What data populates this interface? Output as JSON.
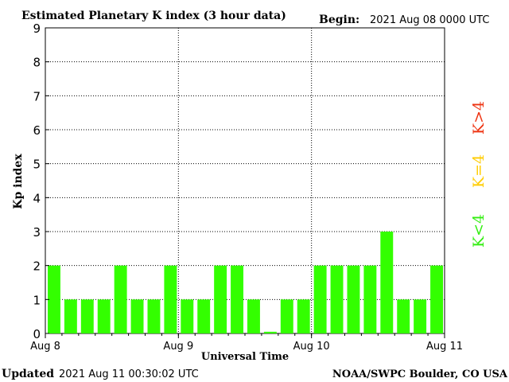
{
  "header": {
    "title": "Estimated Planetary K index (3 hour data)",
    "begin_label": "Begin:",
    "begin_value": "2021 Aug 08 0000 UTC"
  },
  "footer": {
    "updated_label": "Updated",
    "updated_value": "2021 Aug 11 00:30:02 UTC",
    "source": "NOAA/SWPC Boulder, CO USA"
  },
  "legend": {
    "items": [
      {
        "label": "K<4",
        "color": "#33ee11"
      },
      {
        "label": "K=4",
        "color": "#ffcc00"
      },
      {
        "label": "K>4",
        "color": "#ee3311"
      }
    ]
  },
  "chart_data": {
    "type": "bar",
    "title": "Estimated Planetary K index (3 hour data)",
    "xlabel": "Universal Time",
    "ylabel": "Kp index",
    "ylim": [
      0,
      9
    ],
    "yticks": [
      0,
      1,
      2,
      3,
      4,
      5,
      6,
      7,
      8,
      9
    ],
    "xticks": [
      "Aug 8",
      "Aug 9",
      "Aug 10",
      "Aug 11"
    ],
    "grid": true,
    "bar_color": "#33ff00",
    "values": [
      2,
      1,
      1,
      1,
      2,
      1,
      1,
      2,
      1,
      1,
      2,
      2,
      1,
      0.05,
      1,
      1,
      2,
      2,
      2,
      2,
      3,
      1,
      1,
      2
    ]
  }
}
